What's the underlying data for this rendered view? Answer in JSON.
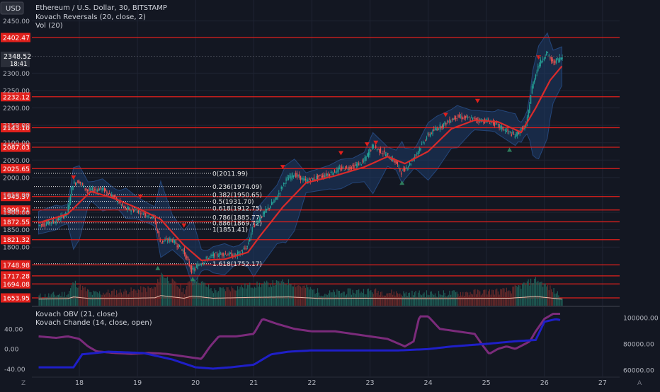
{
  "theme": {
    "background": "#131722",
    "grid": "#1f2433",
    "axis_text": "#b2b5be",
    "up": "#26a69a",
    "down": "#ef5350",
    "level_line": "#e0201c",
    "level_label_bg": "#e0201c",
    "envelope_fill": "#1e3a66",
    "ma_line": "#d92b2b",
    "obv_line": "#1f1fc8",
    "chande_line": "#7b2b7b",
    "marker_down": "#e0201c",
    "marker_up": "#2e7d5c"
  },
  "legend": {
    "usd_button": "USD",
    "symbol": "Ethereum / U.S. Dollar, 30, BITSTAMP",
    "indicator1": "Kovach Reversals (20, close, 2)",
    "indicator2": "Vol (20)",
    "lower1": "Kovach OBV (21, close)",
    "lower2": "Kovach Chande (14, close, open)"
  },
  "price_tag": {
    "price": "2348.52",
    "timer": "18:41"
  },
  "price_axis_ticks": [
    "2450.00",
    "2300.00",
    "2250.00",
    "2200.00",
    "2150.00",
    "2100.00",
    "2050.00",
    "2000.00",
    "1950.00",
    "1900.00",
    "1850.00",
    "1800.00"
  ],
  "level_labels": [
    "2402.47",
    "2232.12",
    "2143.10",
    "2087.03",
    "2025.65",
    "1945.37",
    "1906.71",
    "1872.55",
    "1821.32",
    "1748.98",
    "1717.28",
    "1694.08",
    "1653.95"
  ],
  "fib_labels": [
    "0(2011.99)",
    "0.236(1974.09)",
    "0.382(1950.65)",
    "0.5(1931.70)",
    "0.618(1912.75)",
    "0.786(1885.77)",
    "0.886(1869.72)",
    "1(1851.41)",
    "1.618(1752.17)"
  ],
  "left_axis_ticks": [
    "40.00",
    "0.00",
    "-40.00"
  ],
  "right_axis_ticks": [
    "100000.00",
    "80000.00",
    "60000.00"
  ],
  "x_axis_labels": [
    "18",
    "19",
    "20",
    "21",
    "22",
    "23",
    "24",
    "25",
    "26",
    "27"
  ],
  "corner_icons": {
    "bottom_left": "Z",
    "bottom_right": "A"
  },
  "chart_data": {
    "type": "candlestick",
    "x_ticks": [
      "18",
      "19",
      "20",
      "21",
      "22",
      "23",
      "24",
      "25",
      "26",
      "27"
    ],
    "price_ylim": [
      1640,
      2470
    ],
    "horizontal_levels": [
      2402.47,
      2232.12,
      2143.1,
      2087.03,
      2025.65,
      1945.37,
      1906.71,
      1872.55,
      1821.32,
      1748.98,
      1717.28,
      1694.08,
      1653.95
    ],
    "fib_levels": [
      2011.99,
      1974.09,
      1950.65,
      1931.7,
      1912.75,
      1885.77,
      1869.72,
      1851.41,
      1752.17
    ],
    "close_path": [
      [
        17.3,
        1862
      ],
      [
        17.6,
        1875
      ],
      [
        17.8,
        1898
      ],
      [
        17.9,
        1982
      ],
      [
        18.0,
        1990
      ],
      [
        18.15,
        1962
      ],
      [
        18.4,
        1968
      ],
      [
        18.6,
        1945
      ],
      [
        18.8,
        1910
      ],
      [
        19.0,
        1905
      ],
      [
        19.15,
        1895
      ],
      [
        19.3,
        1885
      ],
      [
        19.4,
        1815
      ],
      [
        19.6,
        1822
      ],
      [
        19.8,
        1790
      ],
      [
        19.95,
        1730
      ],
      [
        20.1,
        1755
      ],
      [
        20.3,
        1775
      ],
      [
        20.5,
        1782
      ],
      [
        20.7,
        1775
      ],
      [
        20.9,
        1800
      ],
      [
        21.0,
        1860
      ],
      [
        21.2,
        1900
      ],
      [
        21.4,
        1940
      ],
      [
        21.55,
        1990
      ],
      [
        21.7,
        2010
      ],
      [
        21.9,
        1990
      ],
      [
        22.1,
        2000
      ],
      [
        22.3,
        2010
      ],
      [
        22.5,
        2025
      ],
      [
        22.7,
        2030
      ],
      [
        22.9,
        2045
      ],
      [
        23.05,
        2090
      ],
      [
        23.25,
        2070
      ],
      [
        23.45,
        2045
      ],
      [
        23.55,
        2015
      ],
      [
        23.7,
        2040
      ],
      [
        23.85,
        2080
      ],
      [
        24.0,
        2120
      ],
      [
        24.15,
        2140
      ],
      [
        24.3,
        2155
      ],
      [
        24.5,
        2175
      ],
      [
        24.7,
        2170
      ],
      [
        24.9,
        2165
      ],
      [
        25.1,
        2160
      ],
      [
        25.3,
        2140
      ],
      [
        25.5,
        2120
      ],
      [
        25.7,
        2150
      ],
      [
        25.8,
        2260
      ],
      [
        25.9,
        2320
      ],
      [
        26.05,
        2360
      ],
      [
        26.15,
        2330
      ],
      [
        26.3,
        2345
      ]
    ],
    "ma_path": [
      [
        17.3,
        1870
      ],
      [
        17.8,
        1895
      ],
      [
        18.2,
        1960
      ],
      [
        18.6,
        1940
      ],
      [
        19.0,
        1912
      ],
      [
        19.4,
        1880
      ],
      [
        19.8,
        1805
      ],
      [
        20.1,
        1762
      ],
      [
        20.5,
        1765
      ],
      [
        20.9,
        1785
      ],
      [
        21.1,
        1830
      ],
      [
        21.5,
        1915
      ],
      [
        21.9,
        1985
      ],
      [
        22.4,
        2005
      ],
      [
        22.9,
        2030
      ],
      [
        23.3,
        2060
      ],
      [
        23.6,
        2040
      ],
      [
        24.0,
        2075
      ],
      [
        24.4,
        2140
      ],
      [
        24.8,
        2165
      ],
      [
        25.2,
        2160
      ],
      [
        25.6,
        2130
      ],
      [
        25.85,
        2200
      ],
      [
        26.1,
        2280
      ],
      [
        26.3,
        2320
      ]
    ],
    "reversal_down_markers": [
      [
        17.9,
        2000
      ],
      [
        19.05,
        1945
      ],
      [
        19.8,
        1862
      ],
      [
        21.5,
        2030
      ],
      [
        22.5,
        2070
      ],
      [
        22.95,
        2095
      ],
      [
        23.1,
        2100
      ],
      [
        24.3,
        2180
      ],
      [
        24.85,
        2220
      ],
      [
        25.9,
        2345
      ]
    ],
    "reversal_up_markers": [
      [
        19.35,
        1740
      ],
      [
        19.95,
        1708
      ],
      [
        23.55,
        1985
      ],
      [
        25.4,
        2080
      ]
    ],
    "volume_series": [
      [
        17.3,
        0.2
      ],
      [
        17.8,
        0.3
      ],
      [
        17.9,
        0.7
      ],
      [
        18.2,
        0.3
      ],
      [
        18.9,
        0.4
      ],
      [
        19.3,
        0.5
      ],
      [
        19.4,
        1.0
      ],
      [
        19.8,
        0.4
      ],
      [
        19.95,
        0.9
      ],
      [
        20.3,
        0.4
      ],
      [
        21.0,
        0.6
      ],
      [
        21.6,
        0.7
      ],
      [
        22.2,
        0.3
      ],
      [
        22.9,
        0.4
      ],
      [
        23.6,
        0.3
      ],
      [
        24.0,
        0.3
      ],
      [
        24.3,
        0.3
      ],
      [
        25.4,
        0.4
      ],
      [
        25.85,
        0.8
      ],
      [
        26.0,
        0.6
      ],
      [
        26.3,
        0.2
      ]
    ],
    "obv_series": [
      [
        17.3,
        62000
      ],
      [
        17.7,
        62000
      ],
      [
        17.9,
        62000
      ],
      [
        18.05,
        72000
      ],
      [
        18.5,
        74000
      ],
      [
        19.1,
        73000
      ],
      [
        19.6,
        68000
      ],
      [
        20.0,
        62000
      ],
      [
        20.3,
        61000
      ],
      [
        20.6,
        62000
      ],
      [
        21.0,
        64000
      ],
      [
        21.3,
        72000
      ],
      [
        21.6,
        74000
      ],
      [
        22.0,
        75000
      ],
      [
        22.6,
        75000
      ],
      [
        23.0,
        75000
      ],
      [
        23.5,
        75000
      ],
      [
        24.0,
        76000
      ],
      [
        24.4,
        78000
      ],
      [
        24.7,
        79000
      ],
      [
        25.0,
        80000
      ],
      [
        25.5,
        82000
      ],
      [
        25.85,
        83000
      ],
      [
        26.0,
        97000
      ],
      [
        26.2,
        99000
      ],
      [
        26.3,
        98000
      ]
    ],
    "chande_series": [
      [
        17.3,
        25
      ],
      [
        17.6,
        22
      ],
      [
        17.8,
        25
      ],
      [
        18.0,
        20
      ],
      [
        18.15,
        5
      ],
      [
        18.3,
        -5
      ],
      [
        18.6,
        -8
      ],
      [
        18.9,
        -10
      ],
      [
        19.2,
        -8
      ],
      [
        19.5,
        -10
      ],
      [
        19.8,
        -15
      ],
      [
        20.1,
        -20
      ],
      [
        20.25,
        5
      ],
      [
        20.4,
        25
      ],
      [
        20.7,
        25
      ],
      [
        21.0,
        30
      ],
      [
        21.15,
        60
      ],
      [
        21.4,
        50
      ],
      [
        21.7,
        40
      ],
      [
        22.0,
        35
      ],
      [
        22.4,
        35
      ],
      [
        22.7,
        30
      ],
      [
        23.0,
        25
      ],
      [
        23.3,
        20
      ],
      [
        23.6,
        5
      ],
      [
        23.75,
        15
      ],
      [
        23.85,
        65
      ],
      [
        24.0,
        65
      ],
      [
        24.2,
        40
      ],
      [
        24.5,
        35
      ],
      [
        24.8,
        30
      ],
      [
        24.95,
        5
      ],
      [
        25.05,
        -10
      ],
      [
        25.2,
        0
      ],
      [
        25.35,
        5
      ],
      [
        25.5,
        0
      ],
      [
        25.75,
        15
      ],
      [
        25.85,
        35
      ],
      [
        26.0,
        60
      ],
      [
        26.15,
        70
      ],
      [
        26.3,
        70
      ]
    ],
    "chande_ylim": [
      -55,
      75
    ],
    "obv_ylim": [
      55000,
      105000
    ]
  }
}
